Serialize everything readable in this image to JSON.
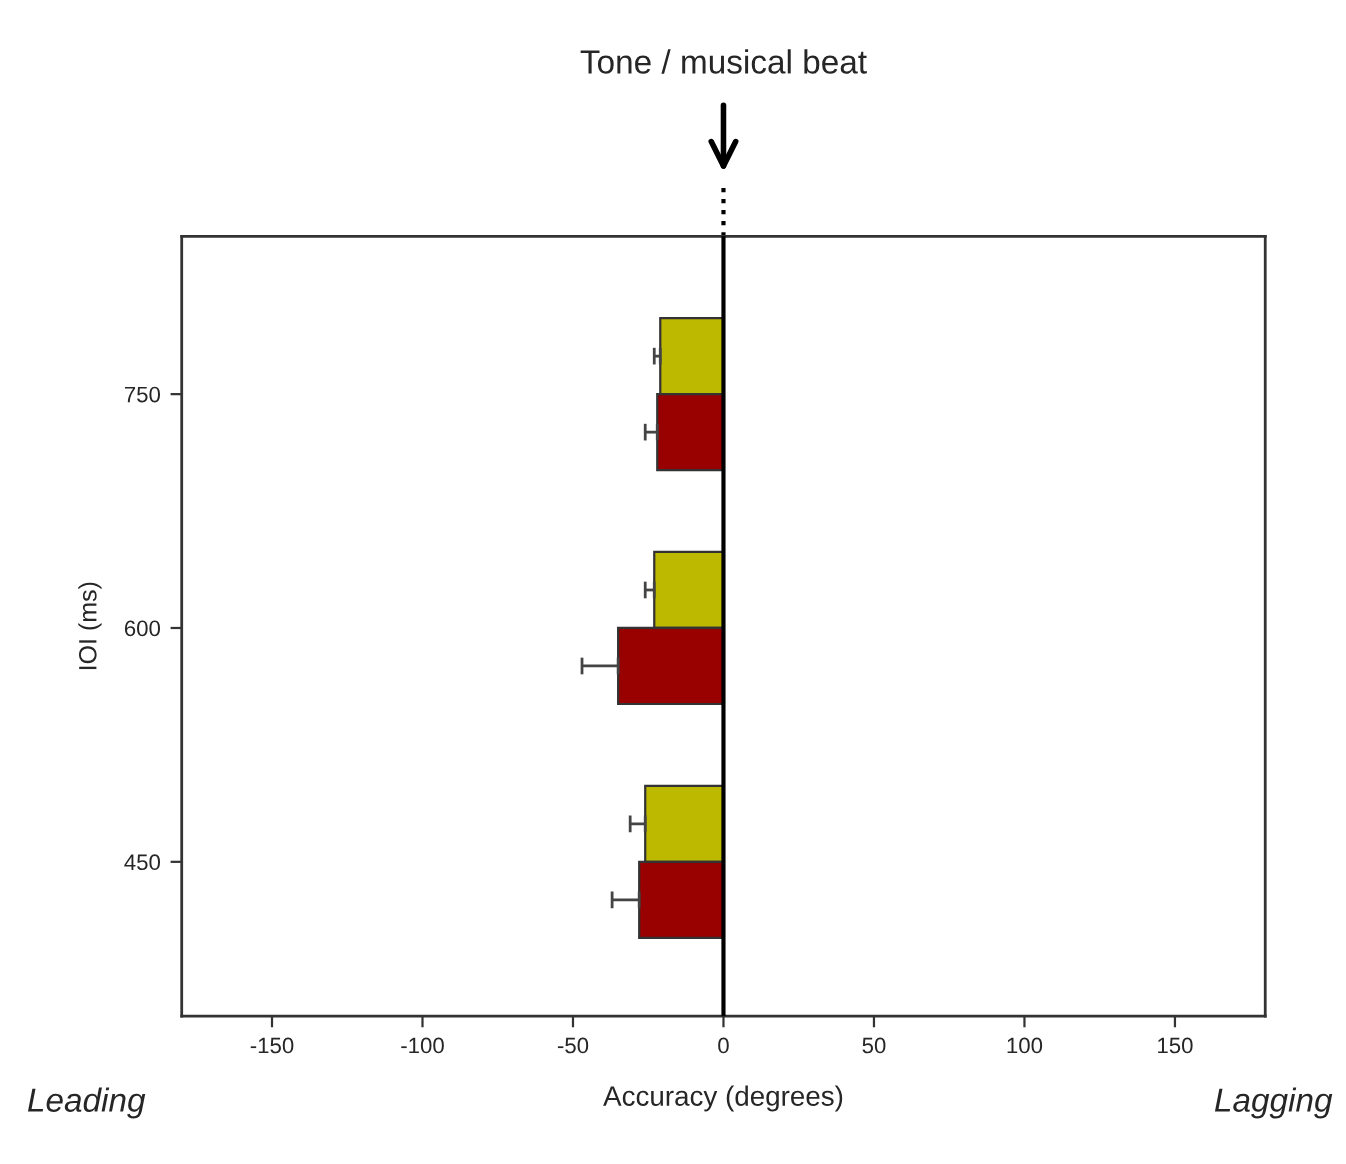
{
  "chart_data": {
    "type": "bar",
    "orientation": "horizontal",
    "title": "Tone / musical beat",
    "xlabel": "Accuracy (degrees)",
    "ylabel": "IOI (ms)",
    "categories": [
      "750",
      "600",
      "450"
    ],
    "series": [
      {
        "color": "#bdb800",
        "values": [
          -21,
          -23,
          -26
        ],
        "errors": [
          2,
          3,
          5
        ]
      },
      {
        "color": "#990000",
        "values": [
          -22,
          -35,
          -28
        ],
        "errors": [
          4,
          12,
          9
        ]
      }
    ],
    "xlim": [
      -180,
      180
    ],
    "xticks": [
      -150,
      -100,
      -50,
      0,
      50,
      100,
      150
    ],
    "ref_lines": [
      {
        "axis": "x",
        "value": 0,
        "color": "#000000"
      }
    ],
    "annotations": [
      "Leading",
      "Lagging"
    ],
    "grid": false,
    "legend": false
  }
}
